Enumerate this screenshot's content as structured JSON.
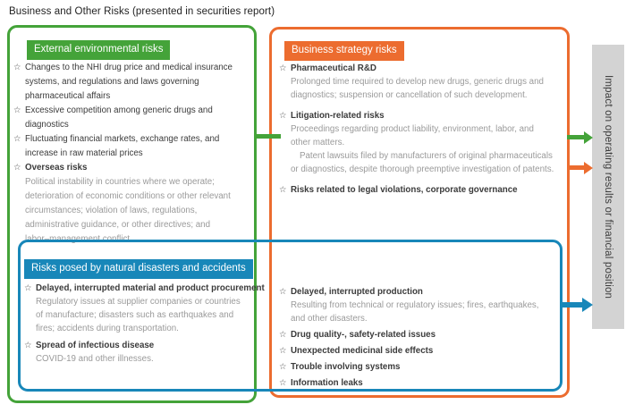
{
  "title": "Business and Other Risks (presented in securities report)",
  "impact_label": "Impact on operating results or financial position",
  "icons": {
    "star": "☆"
  },
  "colors": {
    "green": "#44a339",
    "orange": "#ec6c2f",
    "blue": "#1887b9",
    "impact_bar_bg": "#d3d3d3"
  },
  "boxes": {
    "external": {
      "header": "External environmental risks",
      "items": [
        {
          "title": "Changes to the NHI drug price and medical insurance\nsystems, and regulations and laws governing\npharmaceutical affairs"
        },
        {
          "title": "Excessive competition among generic drugs and\ndiagnostics"
        },
        {
          "title": "Fluctuating financial markets, exchange rates, and\nincrease in raw material prices"
        },
        {
          "title": "Overseas risks",
          "desc": "Political instability in countries where we operate;\ndeterioration of economic conditions or other relevant\ncircumstances; violation of laws, regulations,\nadministrative guidance, or other directives; and\nlabor–management conflict."
        }
      ]
    },
    "strategy": {
      "header": "Business strategy risks",
      "items": [
        {
          "title": "Pharmaceutical R&D",
          "desc": "Prolonged time required to develop new drugs, generic drugs and\ndiagnostics; suspension or cancellation of such development."
        },
        {
          "title": "Litigation-related risks",
          "desc": "Proceedings regarding product liability, environment, labor, and\nother matters.",
          "desc2": "Patent lawsuits filed by manufacturers of original pharmaceuticals\nor diagnostics, despite thorough preemptive investigation of patents."
        },
        {
          "title": "Risks related to legal violations, corporate governance"
        }
      ],
      "items_lower": [
        {
          "title": "Delayed, interrupted production",
          "desc": "Resulting from technical or regulatory issues; fires, earthquakes,\nand other disasters."
        },
        {
          "title": "Drug quality-, safety-related issues"
        },
        {
          "title": "Unexpected medicinal side effects"
        },
        {
          "title": "Trouble involving systems"
        },
        {
          "title": "Information leaks"
        }
      ]
    },
    "disasters": {
      "header": "Risks posed by natural disasters and accidents",
      "items": [
        {
          "title": "Delayed, interrupted material and product procurement",
          "desc": "Regulatory issues at supplier companies or countries\nof manufacture; disasters such as earthquakes and\nfires; accidents during transportation."
        },
        {
          "title": "Spread of infectious disease",
          "desc": "COVID-19 and other illnesses."
        }
      ]
    }
  }
}
